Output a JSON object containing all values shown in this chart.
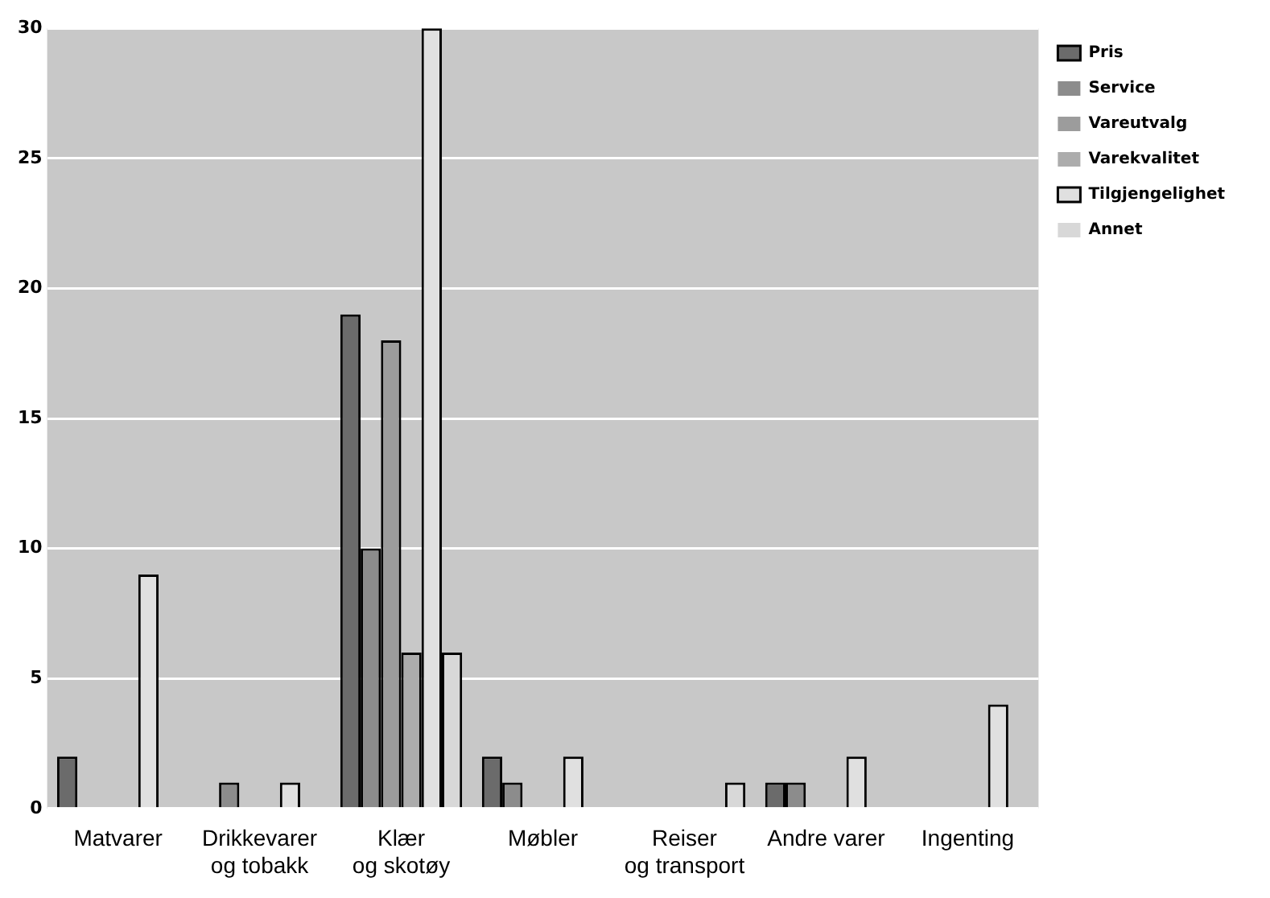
{
  "chart_data": {
    "type": "bar",
    "categories": [
      "Matvarer",
      "Drikkevarer\nog tobakk",
      "Klær\nog skotøy",
      "Møbler",
      "Reiser\nog transport",
      "Andre varer",
      "Ingenting"
    ],
    "series": [
      {
        "name": "Pris",
        "color": "#6b6b6b",
        "values": [
          2,
          0,
          19,
          2,
          0,
          1,
          0
        ]
      },
      {
        "name": "Service",
        "color": "#8c8c8c",
        "values": [
          0,
          1,
          10,
          1,
          0,
          1,
          0
        ]
      },
      {
        "name": "Vareutvalg",
        "color": "#9c9c9c",
        "values": [
          0,
          0,
          18,
          0,
          0,
          0,
          0
        ]
      },
      {
        "name": "Varekvalitet",
        "color": "#acacac",
        "values": [
          0,
          0,
          6,
          0,
          0,
          0,
          0
        ]
      },
      {
        "name": "Tilgjengelighet",
        "color": "#e0e0e0",
        "values": [
          9,
          1,
          30,
          2,
          0,
          2,
          4
        ]
      },
      {
        "name": "Annet",
        "color": "#d8d8d8",
        "values": [
          0,
          0,
          6,
          0,
          1,
          0,
          0
        ]
      }
    ],
    "ylim": [
      0,
      30
    ],
    "yticks": [
      0,
      5,
      10,
      15,
      20,
      25,
      30
    ],
    "grid": "y",
    "legend": "top right"
  }
}
